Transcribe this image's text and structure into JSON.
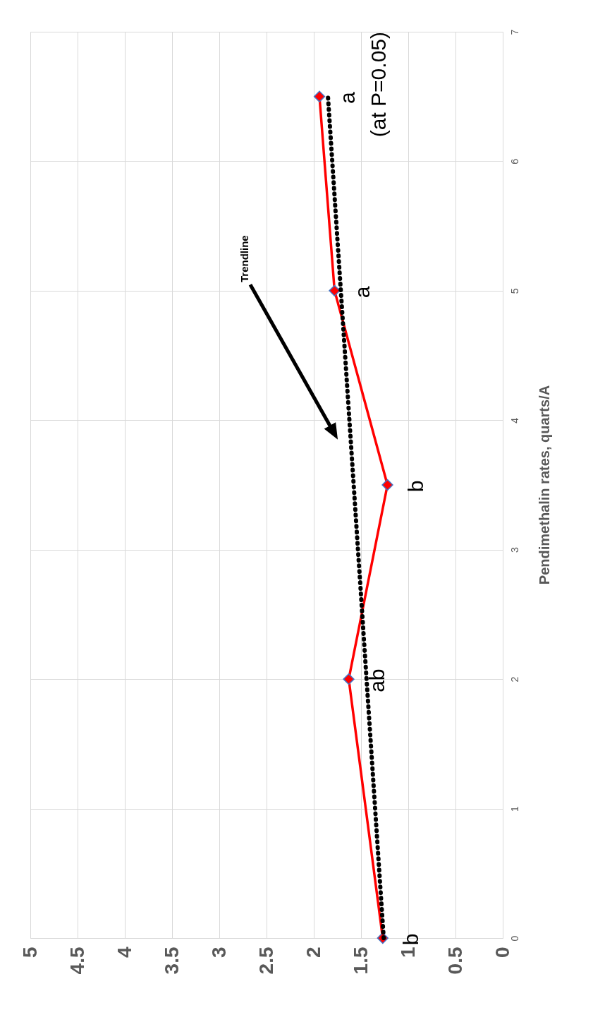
{
  "chart_data": {
    "type": "line",
    "ylabel": "Pendimethalin rates, quarts/A",
    "x": [
      1.27,
      1.63,
      1.22,
      1.78,
      1.94
    ],
    "series": [
      {
        "color": "#ff0000",
        "values": [
          0,
          2,
          3.5,
          5,
          6.5
        ],
        "marker": "diamond",
        "line_style": "solid"
      },
      {
        "type": "line",
        "color": "#000000",
        "x": [
          1.26,
          1.85
        ],
        "values": [
          0,
          6.5
        ],
        "marker": "none",
        "line_style": "dotted"
      }
    ],
    "xlim": [
      5,
      0
    ],
    "xticks": [
      0,
      0.5,
      1,
      1.5,
      2,
      2.5,
      3,
      3.5,
      4,
      4.5,
      5
    ],
    "ylim": [
      0,
      7
    ],
    "yticks": [
      0,
      1,
      2,
      3,
      4,
      5,
      6,
      7
    ],
    "grid": true,
    "annotations": [
      {
        "text": "b",
        "x": 1.27,
        "y": 0
      },
      {
        "text": "ab",
        "x": 1.63,
        "y": 2
      },
      {
        "text": "b",
        "x": 1.22,
        "y": 3.5
      },
      {
        "text": "a",
        "x": 1.78,
        "y": 5
      },
      {
        "text": "a",
        "x": 1.94,
        "y": 6.5
      },
      "(at P=0.05)",
      "Trendline"
    ]
  }
}
